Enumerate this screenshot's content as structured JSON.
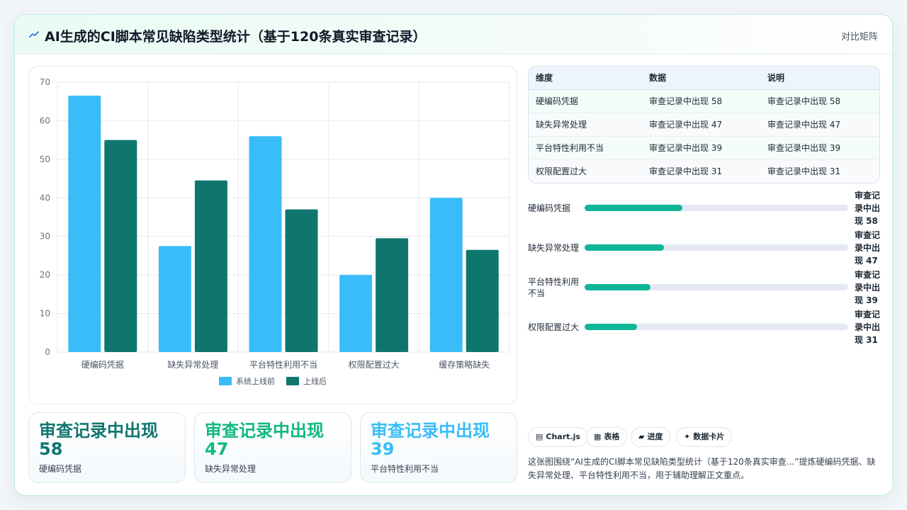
{
  "header": {
    "title": "AI生成的CI脚本常见缺陷类型统计（基于120条真实审查记录）",
    "right_label": "对比矩阵"
  },
  "chart_data": {
    "type": "bar",
    "categories": [
      "硬编码凭据",
      "缺失异常处理",
      "平台特性利用不当",
      "权限配置过大",
      "缓存策略缺失"
    ],
    "series": [
      {
        "name": "系统上线前",
        "color": "#38bdf8",
        "values": [
          66.5,
          27.5,
          56,
          20,
          40
        ]
      },
      {
        "name": "上线后",
        "color": "#0f766e",
        "values": [
          55,
          44.5,
          37,
          29.5,
          26.5
        ]
      }
    ],
    "ylim": [
      0,
      70
    ],
    "yticks": [
      0,
      10,
      20,
      30,
      40,
      50,
      60,
      70
    ],
    "grid": true,
    "legend": "bottom"
  },
  "kpis": [
    {
      "value": "审查记录中出现 58",
      "label": "硬编码凭据",
      "color": "#0f766e"
    },
    {
      "value": "审查记录中出现 47",
      "label": "缺失异常处理",
      "color": "#10b981"
    },
    {
      "value": "审查记录中出现 39",
      "label": "平台特性利用不当",
      "color": "#38bdf8"
    }
  ],
  "table": {
    "headers": [
      "维度",
      "数据",
      "说明"
    ],
    "rows": [
      [
        "硬编码凭据",
        "审查记录中出现 58",
        "审查记录中出现 58"
      ],
      [
        "缺失异常处理",
        "审查记录中出现 47",
        "审查记录中出现 47"
      ],
      [
        "平台特性利用不当",
        "审查记录中出现 39",
        "审查记录中出现 39"
      ],
      [
        "权限配置过大",
        "审查记录中出现 31",
        "审查记录中出现 31"
      ]
    ]
  },
  "progress": [
    {
      "label": "硬编码凭据",
      "value": "审查记录中出现 58",
      "fraction": 0.37
    },
    {
      "label": "缺失异常处理",
      "value": "审查记录中出现 47",
      "fraction": 0.3
    },
    {
      "label": "平台特性利用不当",
      "value": "审查记录中出现 39",
      "fraction": 0.25
    },
    {
      "label": "权限配置过大",
      "value": "审查记录中出现 31",
      "fraction": 0.2
    }
  ],
  "chips": [
    {
      "icon": "▤",
      "label": "Chart.js",
      "icon_name": "chart-icon"
    },
    {
      "icon": "▦",
      "label": "表格",
      "icon_name": "table-icon"
    },
    {
      "icon": "▰",
      "label": "进度",
      "icon_name": "progress-icon"
    },
    {
      "icon": "✦",
      "label": "数据卡片",
      "icon_name": "sparkle-icon"
    }
  ],
  "description": "这张图围绕“AI生成的CI脚本常见缺陷类型统计（基于120条真实审查...”提炼硬编码凭据、缺失异常处理、平台特性利用不当，用于辅助理解正文重点。"
}
